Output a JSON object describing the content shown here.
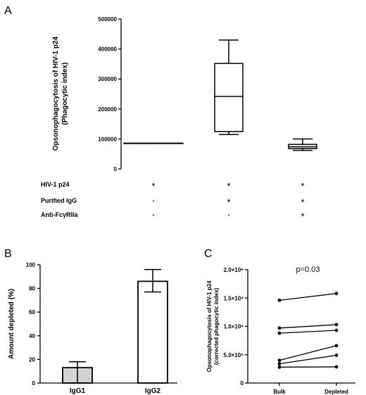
{
  "chart_data": [
    {
      "panel": "A",
      "type": "box",
      "ylabel_lines": [
        "Opsonophagocytosis of HIV-1 p24",
        "(Phagocytic index)"
      ],
      "ylim": [
        0,
        500000
      ],
      "yticks": [
        "0",
        "100000",
        "200000",
        "300000",
        "400000",
        "500000"
      ],
      "ytick_values": [
        0,
        100000,
        200000,
        300000,
        400000,
        500000
      ],
      "groups": [
        {
          "min": 86000,
          "q1": 86000,
          "median": 86000,
          "q3": 86000,
          "max": 86000
        },
        {
          "min": 115000,
          "q1": 125000,
          "median": 242000,
          "q3": 352000,
          "max": 430000
        },
        {
          "min": 62000,
          "q1": 68000,
          "median": 74000,
          "q3": 82000,
          "max": 100000
        }
      ],
      "conditions": [
        {
          "label": "HIV-1 p24",
          "signs": [
            "+",
            "+",
            "+"
          ]
        },
        {
          "label": "Purified IgG",
          "signs": [
            "-",
            "+",
            "+"
          ]
        },
        {
          "label": "Anti-FcγRIIa",
          "signs": [
            "-",
            "-",
            "+"
          ]
        }
      ]
    },
    {
      "panel": "B",
      "type": "bar",
      "ylabel": "Amount depleted (%)",
      "ylim": [
        0,
        100
      ],
      "yticks": [
        "0",
        "20",
        "40",
        "60",
        "80",
        "100"
      ],
      "ytick_values": [
        0,
        20,
        40,
        60,
        80,
        100
      ],
      "categories": [
        "IgG1",
        "IgG2"
      ],
      "values": [
        13,
        86
      ],
      "err_low": [
        0,
        77
      ],
      "err_high": [
        18,
        96
      ],
      "colors": [
        "#d3d3d3",
        "#ffffff"
      ]
    },
    {
      "panel": "C",
      "type": "line",
      "ylabel_lines": [
        "Opsonophagocytosis of HIV-1 p24",
        "(corrected phagocytic index)"
      ],
      "ylim": [
        0,
        2000000
      ],
      "yticks": [
        "0",
        "5.0×10⁵",
        "1.0×10⁶",
        "1.5×10⁶",
        "2.0×10⁶"
      ],
      "ytick_values": [
        0,
        500000,
        1000000,
        1500000,
        2000000
      ],
      "categories": [
        "Bulk",
        "Depleted"
      ],
      "annotation": "p=0.03",
      "series": [
        {
          "values": [
            1460000,
            1580000
          ]
        },
        {
          "values": [
            970000,
            1030000
          ]
        },
        {
          "values": [
            880000,
            930000
          ]
        },
        {
          "values": [
            400000,
            660000
          ]
        },
        {
          "values": [
            340000,
            490000
          ]
        },
        {
          "values": [
            280000,
            285000
          ]
        }
      ]
    }
  ]
}
